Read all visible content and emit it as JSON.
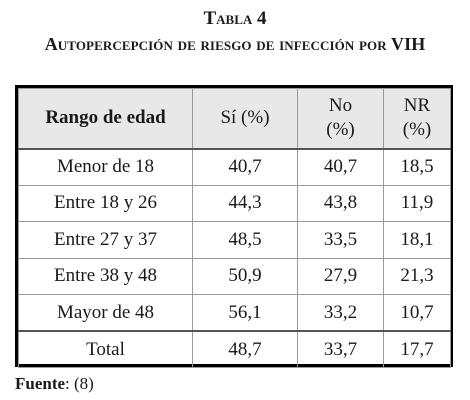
{
  "title": "Tabla 4",
  "subtitle": "Autopercepción de riesgo de infección por VIH",
  "table": {
    "headers": {
      "age_range": "Rango de edad",
      "yes_pct": "Sí (%)",
      "no_line1": "No",
      "no_line2": "(%)",
      "nr_line1": "NR",
      "nr_line2": "(%)"
    },
    "rows": [
      {
        "label": "Menor de 18",
        "si": "40,7",
        "no": "40,7",
        "nr": "18,5"
      },
      {
        "label": "Entre 18 y 26",
        "si": "44,3",
        "no": "43,8",
        "nr": "11,9"
      },
      {
        "label": "Entre 27 y 37",
        "si": "48,5",
        "no": "33,5",
        "nr": "18,1"
      },
      {
        "label": "Entre 38 y 48",
        "si": "50,9",
        "no": "27,9",
        "nr": "21,3"
      },
      {
        "label": "Mayor de 48",
        "si": "56,1",
        "no": "33,2",
        "nr": "10,7"
      }
    ],
    "total": {
      "label": "Total",
      "si": "48,7",
      "no": "33,7",
      "nr": "17,7"
    }
  },
  "source": {
    "label": "Fuente",
    "text": ": (8)"
  }
}
